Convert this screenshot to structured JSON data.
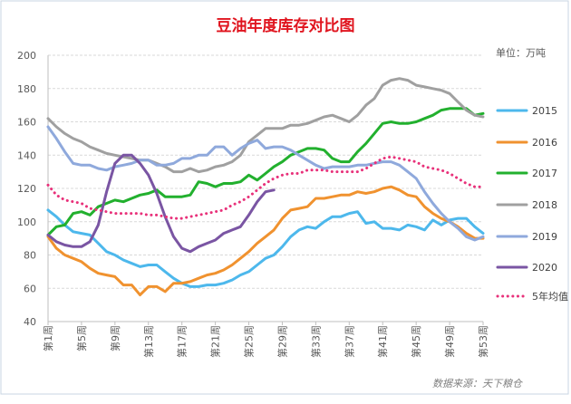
{
  "chart_data": {
    "type": "line",
    "title": "豆油年度库存对比图",
    "unit_label": "单位：万吨",
    "source": "数据来源：天下粮仓",
    "ylim": [
      40,
      200
    ],
    "yticks": [
      40,
      60,
      80,
      100,
      120,
      140,
      160,
      180,
      200
    ],
    "x_tick_labels": [
      "第1周",
      "第5周",
      "第9周",
      "第13周",
      "第17周",
      "第21周",
      "第25周",
      "第29周",
      "第33周",
      "第37周",
      "第41周",
      "第45周",
      "第49周",
      "第53周"
    ],
    "x_weeks": 53,
    "grid": true,
    "legend_position": "right",
    "series": [
      {
        "name": "2015",
        "color": "#4db8ec",
        "style": "solid",
        "values": [
          107,
          103,
          98,
          94,
          93,
          92,
          87,
          82,
          80,
          77,
          75,
          73,
          74,
          74,
          70,
          66,
          63,
          61,
          61,
          62,
          62,
          63,
          65,
          68,
          70,
          74,
          78,
          80,
          85,
          91,
          95,
          97,
          96,
          100,
          103,
          103,
          105,
          106,
          99,
          100,
          96,
          96,
          95,
          98,
          97,
          95,
          101,
          98,
          101,
          102,
          102,
          97,
          93
        ]
      },
      {
        "name": "2016",
        "color": "#f0922f",
        "style": "solid",
        "values": [
          91,
          84,
          80,
          78,
          76,
          72,
          69,
          68,
          67,
          62,
          62,
          56,
          61,
          61,
          58,
          63,
          63,
          64,
          66,
          68,
          69,
          71,
          74,
          78,
          82,
          87,
          91,
          95,
          102,
          107,
          108,
          109,
          114,
          114,
          115,
          116,
          116,
          118,
          117,
          118,
          120,
          121,
          119,
          116,
          115,
          109,
          105,
          102,
          100,
          97,
          93,
          90,
          90
        ]
      },
      {
        "name": "2017",
        "color": "#22b02e",
        "style": "solid",
        "values": [
          92,
          97,
          98,
          105,
          106,
          104,
          109,
          111,
          113,
          112,
          114,
          116,
          117,
          119,
          115,
          115,
          115,
          116,
          124,
          123,
          121,
          123,
          123,
          124,
          128,
          125,
          129,
          133,
          136,
          140,
          142,
          144,
          144,
          143,
          138,
          136,
          136,
          142,
          147,
          153,
          159,
          160,
          159,
          159,
          160,
          162,
          164,
          167,
          168,
          168,
          168,
          164,
          165
        ]
      },
      {
        "name": "2018",
        "color": "#a0a0a0",
        "style": "solid",
        "values": [
          162,
          157,
          153,
          150,
          148,
          145,
          143,
          141,
          140,
          139,
          138,
          137,
          137,
          135,
          133,
          130,
          130,
          132,
          130,
          131,
          133,
          134,
          136,
          140,
          148,
          152,
          156,
          156,
          156,
          158,
          158,
          159,
          161,
          163,
          164,
          162,
          160,
          164,
          170,
          174,
          182,
          185,
          186,
          185,
          182,
          181,
          180,
          179,
          177,
          172,
          167,
          164,
          163
        ]
      },
      {
        "name": "2019",
        "color": "#8fa9dc",
        "style": "solid",
        "values": [
          157,
          150,
          142,
          135,
          134,
          134,
          132,
          131,
          133,
          134,
          135,
          137,
          137,
          134,
          134,
          135,
          138,
          138,
          140,
          140,
          145,
          145,
          140,
          144,
          147,
          149,
          144,
          145,
          145,
          143,
          140,
          137,
          134,
          132,
          133,
          133,
          133,
          134,
          134,
          135,
          136,
          136,
          134,
          130,
          126,
          118,
          111,
          105,
          100,
          96,
          91,
          89,
          91
        ]
      },
      {
        "name": "2020",
        "color": "#7a55a3",
        "style": "solid",
        "values": [
          92,
          88,
          86,
          85,
          85,
          88,
          98,
          118,
          135,
          140,
          140,
          135,
          128,
          117,
          103,
          91,
          84,
          82,
          85,
          87,
          89,
          93,
          95,
          97,
          104,
          112,
          118,
          119
        ]
      },
      {
        "name": "5年均值",
        "color": "#e8317a",
        "style": "dotted",
        "values": [
          122,
          116,
          113,
          112,
          111,
          108,
          107,
          106,
          105,
          105,
          105,
          105,
          104,
          104,
          103,
          102,
          102,
          103,
          104,
          105,
          106,
          107,
          110,
          112,
          115,
          119,
          123,
          126,
          128,
          129,
          129,
          131,
          131,
          131,
          130,
          130,
          130,
          130,
          132,
          135,
          138,
          139,
          138,
          137,
          136,
          133,
          132,
          131,
          129,
          126,
          123,
          121,
          121
        ]
      }
    ]
  }
}
